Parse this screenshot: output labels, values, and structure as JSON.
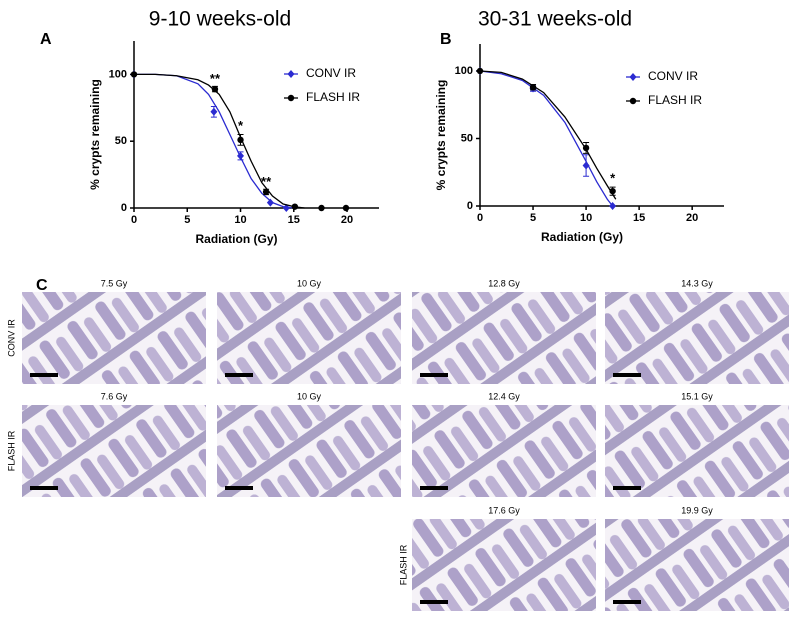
{
  "chart_data": [
    {
      "type": "scatter",
      "panel_label": "A",
      "title": "9-10 weeks-old",
      "xlabel": "Radiation (Gy)",
      "ylabel": "% crypts remaining",
      "xlim": [
        0,
        23
      ],
      "ylim": [
        0,
        125
      ],
      "xticks": [
        0,
        5,
        10,
        15,
        20
      ],
      "yticks": [
        0,
        50,
        100
      ],
      "legend": "upper right",
      "series": [
        {
          "name": "CONV IR",
          "color": "#2b2bd1",
          "marker": "diamond",
          "x": [
            0,
            7.5,
            10,
            12.8,
            14.3
          ],
          "values": [
            100,
            72,
            39,
            4,
            0
          ],
          "errors": [
            null,
            4,
            3,
            null,
            null
          ],
          "fit": {
            "x": [
              0,
              2,
              4,
              6,
              7,
              8,
              9,
              10,
              11,
              12,
              13,
              14,
              15
            ],
            "values": [
              100,
              100,
              99,
              93,
              85,
              72,
              55,
              38,
              22,
              11,
              4,
              1,
              0
            ]
          }
        },
        {
          "name": "FLASH IR",
          "color": "#000000",
          "marker": "circle",
          "x": [
            0,
            7.6,
            10,
            12.4,
            15.1,
            17.6,
            19.9
          ],
          "values": [
            100,
            89,
            51,
            12,
            1,
            0,
            0
          ],
          "errors": [
            null,
            2,
            4,
            2,
            null,
            null,
            null
          ],
          "fit": {
            "x": [
              0,
              2,
              4,
              6,
              7,
              8,
              9,
              10,
              11,
              12,
              13,
              14,
              15,
              16
            ],
            "values": [
              100,
              100,
              99,
              96,
              92,
              85,
              72,
              53,
              35,
              19,
              9,
              3,
              1,
              0
            ]
          }
        }
      ],
      "annotations": [
        {
          "text": "**",
          "x": 7.6,
          "y": 96
        },
        {
          "text": "*",
          "x": 10,
          "y": 61
        },
        {
          "text": "**",
          "x": 12.4,
          "y": 19
        }
      ]
    },
    {
      "type": "scatter",
      "panel_label": "B",
      "title": "30-31 weeks-old",
      "xlabel": "Radiation (Gy)",
      "ylabel": "% crypts remaining",
      "xlim": [
        0,
        23
      ],
      "ylim": [
        0,
        120
      ],
      "xticks": [
        0,
        5,
        10,
        15,
        20
      ],
      "yticks": [
        0,
        50,
        100
      ],
      "legend": "upper right",
      "series": [
        {
          "name": "CONV IR",
          "color": "#2b2bd1",
          "marker": "diamond",
          "x": [
            0,
            5,
            10,
            12.5
          ],
          "values": [
            100,
            87,
            30,
            0
          ],
          "errors": [
            null,
            2,
            8,
            null
          ],
          "fit": {
            "x": [
              0,
              2,
              4,
              6,
              8,
              10,
              11,
              12,
              12.5
            ],
            "values": [
              100,
              98,
              93,
              82,
              62,
              33,
              18,
              5,
              0
            ]
          }
        },
        {
          "name": "FLASH IR",
          "color": "#000000",
          "marker": "circle",
          "x": [
            0,
            5,
            10,
            12.5
          ],
          "values": [
            100,
            88,
            43,
            11
          ],
          "errors": [
            null,
            2,
            4,
            3
          ],
          "fit": {
            "x": [
              0,
              2,
              4,
              6,
              8,
              10,
              11,
              12,
              12.8
            ],
            "values": [
              100,
              99,
              94,
              84,
              66,
              42,
              28,
              15,
              5
            ]
          }
        }
      ],
      "annotations": [
        {
          "text": "*",
          "x": 12.5,
          "y": 20
        }
      ]
    }
  ],
  "panel_c": {
    "label": "C",
    "rows": [
      {
        "label": "CONV IR",
        "images": [
          "7.5 Gy",
          "10 Gy",
          "12.8 Gy",
          "14.3 Gy"
        ]
      },
      {
        "label": "FLASH IR",
        "images": [
          "7.6 Gy",
          "10 Gy",
          "12.4 Gy",
          "15.1 Gy"
        ]
      },
      {
        "label": "FLASH IR",
        "images": [
          "17.6 Gy",
          "19.9 Gy"
        ]
      }
    ]
  }
}
